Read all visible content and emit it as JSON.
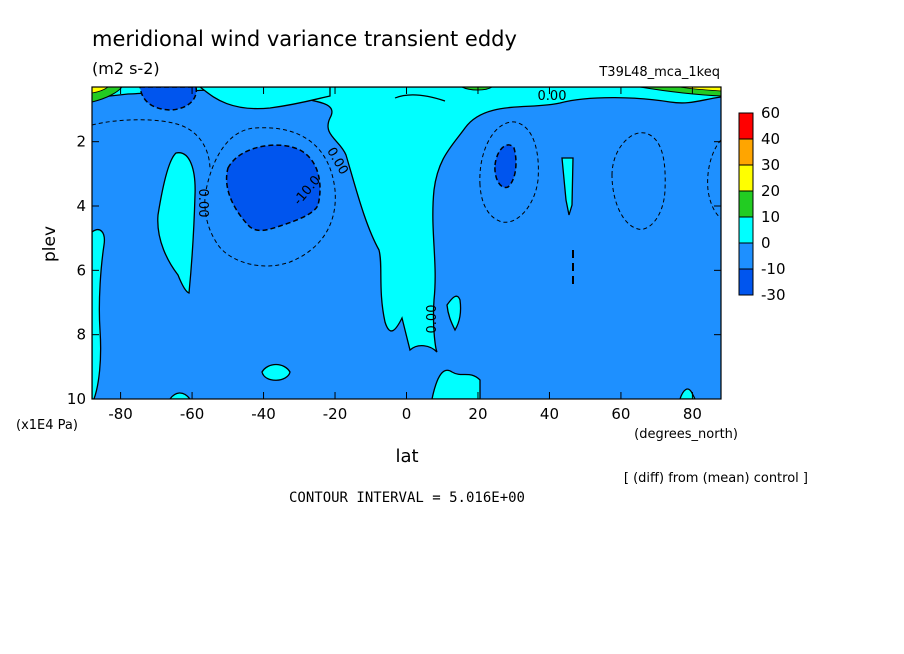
{
  "chart_data": {
    "type": "contour",
    "title": "meridional wind variance transient eddy",
    "units": "(m2 s-2)",
    "run_label": "T39L48_mca_1keq",
    "xlabel": "lat",
    "xlabel_units": "(degrees_north)",
    "ylabel": "plev",
    "ylabel_scale": "(x1E4 Pa)",
    "x_ticks": [
      "-80",
      "-60",
      "-40",
      "-20",
      "0",
      "20",
      "40",
      "60",
      "80"
    ],
    "y_ticks": [
      "2",
      "4",
      "6",
      "8",
      "10"
    ],
    "xlim": [
      -88,
      88
    ],
    "ylim": [
      10,
      0.3
    ],
    "y_inverted": true,
    "grid": false,
    "legend_position": "right",
    "colorbar": {
      "labels": [
        "60",
        "40",
        "30",
        "20",
        "10",
        "0",
        "-10",
        "-30"
      ],
      "bands": [
        {
          "range": [
            40,
            60
          ],
          "color": "#ff0000"
        },
        {
          "range": [
            30,
            40
          ],
          "color": "#ffa500"
        },
        {
          "range": [
            20,
            30
          ],
          "color": "#ffff00"
        },
        {
          "range": [
            10,
            20
          ],
          "color": "#22cc22"
        },
        {
          "range": [
            0,
            10
          ],
          "color": "#00ffff"
        },
        {
          "range": [
            -10,
            0
          ],
          "color": "#1e90ff"
        },
        {
          "range": [
            -30,
            -10
          ],
          "color": "#0055ee"
        }
      ]
    },
    "contour_labels": [
      {
        "text": "0.00",
        "x": -2,
        "y": 0.25
      },
      {
        "text": "0.00",
        "x": -38,
        "y": 3.8
      },
      {
        "text": "0.00",
        "x": -22,
        "y": 2.9
      },
      {
        "text": "-10.0",
        "x": -29,
        "y": 3.6
      },
      {
        "text": "0.00",
        "x": 4,
        "y": 7.5
      }
    ],
    "contour_interval_text": "CONTOUR INTERVAL = 5.016E+00",
    "footer_note": "[ (diff) from (mean) control ]"
  },
  "colors": {
    "background": "#ffffff",
    "light_blue": "#1e90ff",
    "cyan": "#00ffff",
    "dark_blue": "#0055ee",
    "green": "#22cc22",
    "yellow": "#ffff00",
    "orange": "#ffa500",
    "red": "#ff0000"
  }
}
